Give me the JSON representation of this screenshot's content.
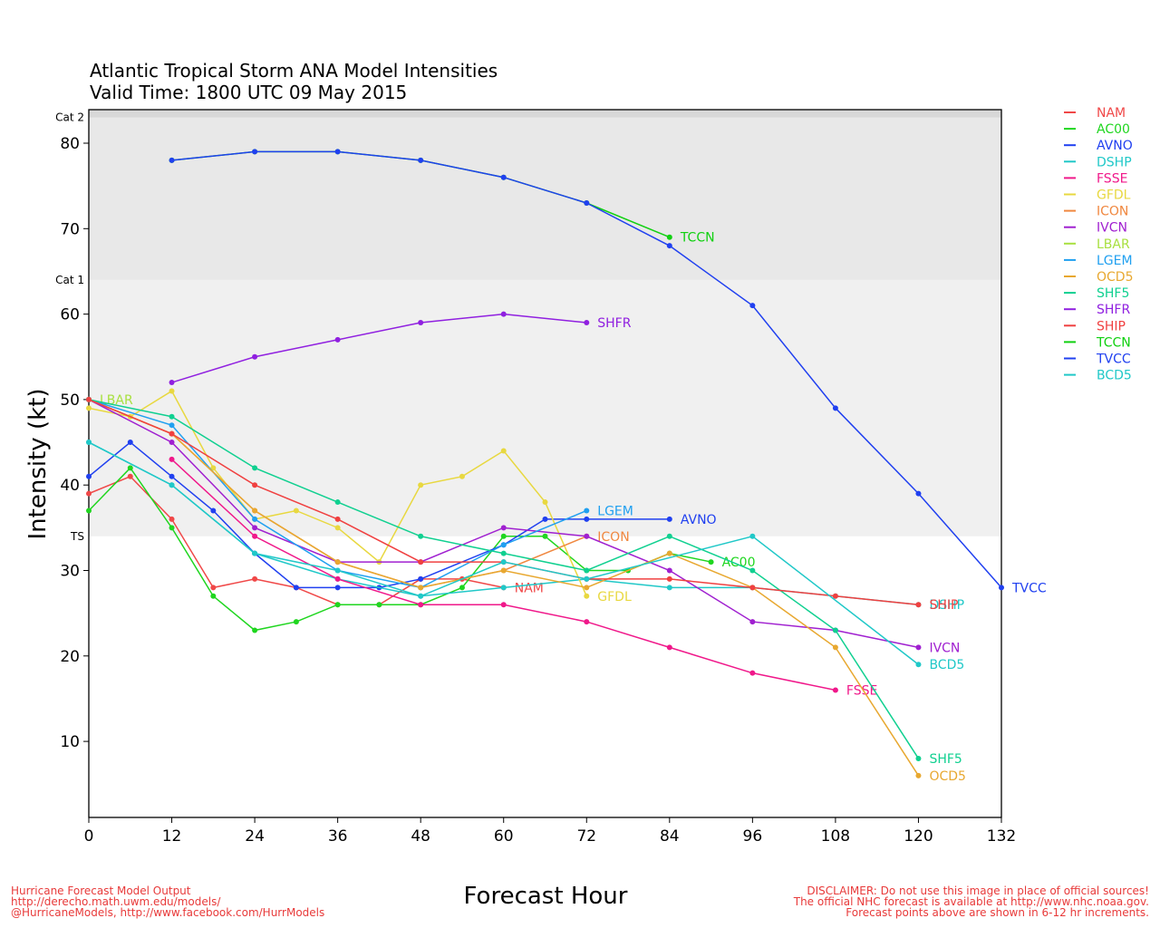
{
  "chart_data": {
    "type": "line",
    "title": "Atlantic Tropical Storm ANA Model Intensities",
    "subtitle": "Valid Time: 1800 UTC 09 May 2015",
    "xlabel": "Forecast Hour",
    "ylabel": "Intensity (kt)",
    "xlim": [
      0,
      132
    ],
    "ylim": [
      1,
      83
    ],
    "xticks": [
      0,
      12,
      24,
      36,
      48,
      60,
      72,
      84,
      96,
      108,
      120,
      132
    ],
    "yticks": [
      10,
      20,
      30,
      40,
      50,
      60,
      70,
      80
    ],
    "bands": [
      {
        "label": "TS",
        "from": 34,
        "to": 64,
        "color": "#f0f0f0"
      },
      {
        "label": "Cat 1",
        "from": 64,
        "to": 83,
        "color": "#e8e8e8"
      },
      {
        "label": "Cat 2",
        "from": 83,
        "to": 84,
        "color": "#d8d8d8"
      }
    ],
    "category_labels": [
      {
        "label": "Cat 2",
        "at": 83
      },
      {
        "label": "Cat 1",
        "at": 64
      },
      {
        "label": "TS",
        "at": 34
      }
    ],
    "legend_position": "right",
    "series": [
      {
        "name": "NAM",
        "color": "#f04848",
        "points": [
          [
            0,
            39
          ],
          [
            6,
            41
          ],
          [
            12,
            36
          ],
          [
            18,
            28
          ],
          [
            24,
            29
          ],
          [
            30,
            28
          ],
          [
            36,
            26
          ],
          [
            42,
            26
          ],
          [
            48,
            29
          ],
          [
            54,
            29
          ],
          [
            60,
            28
          ]
        ],
        "label_at_end": true
      },
      {
        "name": "AC00",
        "color": "#1fd61f",
        "points": [
          [
            0,
            37
          ],
          [
            6,
            42
          ],
          [
            12,
            35
          ],
          [
            18,
            27
          ],
          [
            24,
            23
          ],
          [
            30,
            24
          ],
          [
            36,
            26
          ],
          [
            42,
            26
          ],
          [
            48,
            26
          ],
          [
            54,
            28
          ],
          [
            60,
            34
          ],
          [
            66,
            34
          ],
          [
            72,
            30
          ],
          [
            78,
            30
          ],
          [
            84,
            32
          ],
          [
            90,
            31
          ]
        ],
        "label_at_end": true
      },
      {
        "name": "AVNO",
        "color": "#2040f0",
        "points": [
          [
            0,
            41
          ],
          [
            6,
            45
          ],
          [
            12,
            41
          ],
          [
            18,
            37
          ],
          [
            24,
            32
          ],
          [
            30,
            28
          ],
          [
            36,
            28
          ],
          [
            42,
            28
          ],
          [
            48,
            29
          ],
          [
            60,
            33
          ],
          [
            66,
            36
          ],
          [
            72,
            36
          ],
          [
            84,
            36
          ]
        ],
        "label_at_end": true
      },
      {
        "name": "DSHP",
        "color": "#20c8c8",
        "points": [
          [
            0,
            45
          ],
          [
            12,
            40
          ],
          [
            24,
            32
          ],
          [
            36,
            29
          ],
          [
            48,
            27
          ],
          [
            60,
            28
          ],
          [
            72,
            29
          ],
          [
            84,
            28
          ],
          [
            96,
            28
          ],
          [
            108,
            27
          ],
          [
            120,
            26
          ]
        ],
        "label_at_end": true
      },
      {
        "name": "FSSE",
        "color": "#f0188a",
        "points": [
          [
            12,
            43
          ],
          [
            24,
            34
          ],
          [
            36,
            29
          ],
          [
            48,
            26
          ],
          [
            60,
            26
          ],
          [
            72,
            24
          ],
          [
            84,
            21
          ],
          [
            96,
            18
          ],
          [
            108,
            16
          ]
        ],
        "label_at_end": true
      },
      {
        "name": "GFDL",
        "color": "#e8d840",
        "points": [
          [
            0,
            49
          ],
          [
            6,
            48
          ],
          [
            12,
            51
          ],
          [
            18,
            42
          ],
          [
            24,
            36
          ],
          [
            30,
            37
          ],
          [
            36,
            35
          ],
          [
            42,
            31
          ],
          [
            48,
            40
          ],
          [
            54,
            41
          ],
          [
            60,
            44
          ],
          [
            66,
            38
          ],
          [
            72,
            27
          ]
        ],
        "label_at_end": true
      },
      {
        "name": "ICON",
        "color": "#f08840",
        "points": [
          [
            0,
            50
          ],
          [
            12,
            46
          ],
          [
            24,
            37
          ],
          [
            36,
            31
          ],
          [
            48,
            28
          ],
          [
            60,
            30
          ],
          [
            72,
            34
          ]
        ],
        "label_at_end": true
      },
      {
        "name": "IVCN",
        "color": "#a020d0",
        "points": [
          [
            0,
            50
          ],
          [
            12,
            45
          ],
          [
            24,
            35
          ],
          [
            36,
            31
          ],
          [
            48,
            31
          ],
          [
            60,
            35
          ],
          [
            72,
            34
          ],
          [
            84,
            30
          ],
          [
            96,
            24
          ],
          [
            108,
            23
          ],
          [
            120,
            21
          ]
        ],
        "label_at_end": true
      },
      {
        "name": "LBAR",
        "color": "#a8e040",
        "points": [
          [
            0,
            50
          ]
        ],
        "label_at_end": true
      },
      {
        "name": "LGEM",
        "color": "#20a0f0",
        "points": [
          [
            0,
            50
          ],
          [
            12,
            47
          ],
          [
            24,
            36
          ],
          [
            36,
            30
          ],
          [
            48,
            28
          ],
          [
            60,
            33
          ],
          [
            72,
            37
          ]
        ],
        "label_at_end": true
      },
      {
        "name": "OCD5",
        "color": "#e8a830",
        "points": [
          [
            0,
            50
          ],
          [
            12,
            46
          ],
          [
            24,
            37
          ],
          [
            36,
            31
          ],
          [
            48,
            28
          ],
          [
            60,
            30
          ],
          [
            72,
            28
          ],
          [
            84,
            32
          ],
          [
            96,
            28
          ],
          [
            108,
            21
          ],
          [
            120,
            6
          ]
        ],
        "label_at_end": true
      },
      {
        "name": "SHF5",
        "color": "#10d090",
        "points": [
          [
            0,
            50
          ],
          [
            12,
            48
          ],
          [
            24,
            42
          ],
          [
            36,
            38
          ],
          [
            48,
            34
          ],
          [
            60,
            32
          ],
          [
            72,
            30
          ],
          [
            84,
            34
          ],
          [
            96,
            30
          ],
          [
            108,
            23
          ],
          [
            120,
            8
          ]
        ],
        "label_at_end": true
      },
      {
        "name": "SHFR",
        "color": "#9020e0",
        "points": [
          [
            12,
            52
          ],
          [
            24,
            55
          ],
          [
            36,
            57
          ],
          [
            48,
            59
          ],
          [
            60,
            60
          ],
          [
            72,
            59
          ]
        ],
        "label_at_end": true
      },
      {
        "name": "SHIP",
        "color": "#f04040",
        "points": [
          [
            0,
            50
          ],
          [
            12,
            46
          ],
          [
            24,
            40
          ],
          [
            36,
            36
          ],
          [
            48,
            31
          ],
          [
            60,
            31
          ],
          [
            72,
            29
          ],
          [
            84,
            29
          ],
          [
            96,
            28
          ],
          [
            108,
            27
          ],
          [
            120,
            26
          ]
        ],
        "label_at_end": true
      },
      {
        "name": "TCCN",
        "color": "#10d010",
        "points": [
          [
            12,
            78
          ],
          [
            24,
            79
          ],
          [
            36,
            79
          ],
          [
            48,
            78
          ],
          [
            60,
            76
          ],
          [
            72,
            73
          ],
          [
            84,
            69
          ]
        ],
        "label_at_end": true
      },
      {
        "name": "TVCC",
        "color": "#2040f0",
        "points": [
          [
            12,
            78
          ],
          [
            24,
            79
          ],
          [
            36,
            79
          ],
          [
            48,
            78
          ],
          [
            60,
            76
          ],
          [
            72,
            73
          ],
          [
            84,
            68
          ],
          [
            96,
            61
          ],
          [
            108,
            49
          ],
          [
            120,
            39
          ],
          [
            132,
            28
          ]
        ],
        "label_at_end": true
      },
      {
        "name": "BCD5",
        "color": "#20c8c8",
        "points": [
          [
            0,
            45
          ],
          [
            12,
            40
          ],
          [
            24,
            32
          ],
          [
            36,
            30
          ],
          [
            48,
            27
          ],
          [
            60,
            31
          ],
          [
            72,
            29
          ],
          [
            96,
            34
          ],
          [
            120,
            19
          ]
        ],
        "label_at_end": true
      }
    ]
  },
  "footer": {
    "left": [
      "Hurricane Forecast Model Output",
      "http://derecho.math.uwm.edu/models/",
      "@HurricaneModels, http://www.facebook.com/HurrModels"
    ],
    "right": [
      "DISCLAIMER: Do not use this image in place of official sources!",
      "The official NHC forecast is available at http://www.nhc.noaa.gov.",
      "Forecast points above are shown in 6-12 hr increments."
    ]
  }
}
